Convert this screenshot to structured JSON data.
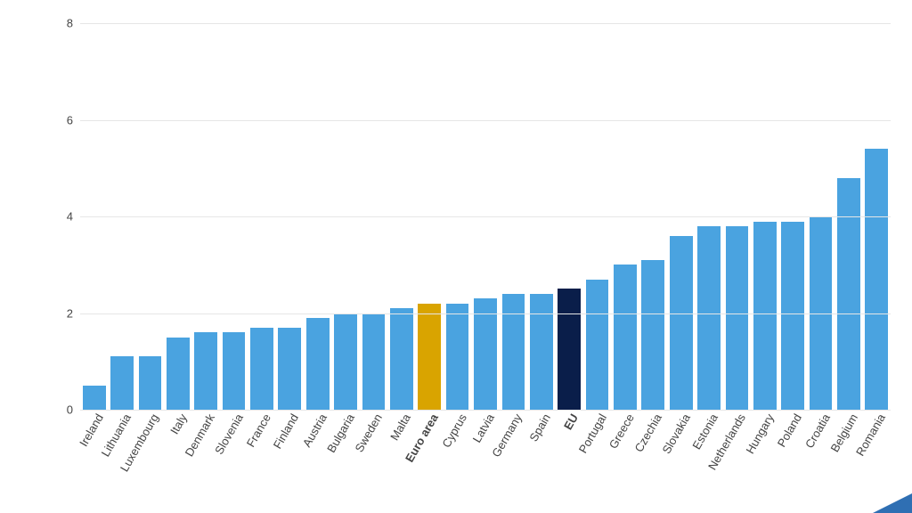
{
  "chart": {
    "type": "bar",
    "ylim": [
      0,
      8.3
    ],
    "yticks": [
      0,
      2,
      4,
      6,
      8
    ],
    "grid_color": "#e6e6e6",
    "background_color": "#ffffff",
    "axis_font_size": 13,
    "axis_color": "#444444",
    "bar_gap_ratio": 0.18,
    "default_bar_color": "#4aa3e0",
    "highlight_colors": {
      "euro_area": "#d9a400",
      "eu": "#0a1e4a"
    },
    "series": [
      {
        "label": "Ireland",
        "value": 0.5,
        "color": "#4aa3e0",
        "bold": false
      },
      {
        "label": "Lithuania",
        "value": 1.1,
        "color": "#4aa3e0",
        "bold": false
      },
      {
        "label": "Luxembourg",
        "value": 1.1,
        "color": "#4aa3e0",
        "bold": false
      },
      {
        "label": "Italy",
        "value": 1.5,
        "color": "#4aa3e0",
        "bold": false
      },
      {
        "label": "Denmark",
        "value": 1.6,
        "color": "#4aa3e0",
        "bold": false
      },
      {
        "label": "Slovenia",
        "value": 1.6,
        "color": "#4aa3e0",
        "bold": false
      },
      {
        "label": "France",
        "value": 1.7,
        "color": "#4aa3e0",
        "bold": false
      },
      {
        "label": "Finland",
        "value": 1.7,
        "color": "#4aa3e0",
        "bold": false
      },
      {
        "label": "Austria",
        "value": 1.9,
        "color": "#4aa3e0",
        "bold": false
      },
      {
        "label": "Bulgaria",
        "value": 2.0,
        "color": "#4aa3e0",
        "bold": false
      },
      {
        "label": "Sweden",
        "value": 2.0,
        "color": "#4aa3e0",
        "bold": false
      },
      {
        "label": "Malta",
        "value": 2.1,
        "color": "#4aa3e0",
        "bold": false
      },
      {
        "label": "Euro area",
        "value": 2.2,
        "color": "#d9a400",
        "bold": true
      },
      {
        "label": "Cyprus",
        "value": 2.2,
        "color": "#4aa3e0",
        "bold": false
      },
      {
        "label": "Latvia",
        "value": 2.3,
        "color": "#4aa3e0",
        "bold": false
      },
      {
        "label": "Germany",
        "value": 2.4,
        "color": "#4aa3e0",
        "bold": false
      },
      {
        "label": "Spain",
        "value": 2.4,
        "color": "#4aa3e0",
        "bold": false
      },
      {
        "label": "EU",
        "value": 2.5,
        "color": "#0a1e4a",
        "bold": true
      },
      {
        "label": "Portugal",
        "value": 2.7,
        "color": "#4aa3e0",
        "bold": false
      },
      {
        "label": "Greece",
        "value": 3.0,
        "color": "#4aa3e0",
        "bold": false
      },
      {
        "label": "Czechia",
        "value": 3.1,
        "color": "#4aa3e0",
        "bold": false
      },
      {
        "label": "Slovakia",
        "value": 3.6,
        "color": "#4aa3e0",
        "bold": false
      },
      {
        "label": "Estonia",
        "value": 3.8,
        "color": "#4aa3e0",
        "bold": false
      },
      {
        "label": "Netherlands",
        "value": 3.8,
        "color": "#4aa3e0",
        "bold": false
      },
      {
        "label": "Hungary",
        "value": 3.9,
        "color": "#4aa3e0",
        "bold": false
      },
      {
        "label": "Poland",
        "value": 3.9,
        "color": "#4aa3e0",
        "bold": false
      },
      {
        "label": "Croatia",
        "value": 4.0,
        "color": "#4aa3e0",
        "bold": false
      },
      {
        "label": "Belgium",
        "value": 4.8,
        "color": "#4aa3e0",
        "bold": false
      },
      {
        "label": "Romania",
        "value": 5.4,
        "color": "#4aa3e0",
        "bold": false
      }
    ]
  }
}
